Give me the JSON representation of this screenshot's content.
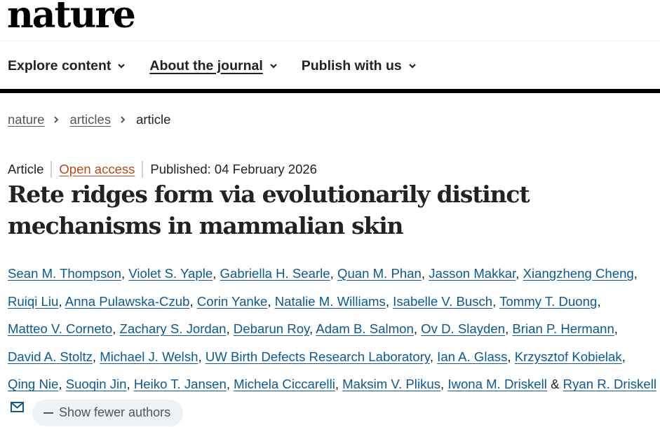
{
  "header": {
    "logo": "nature",
    "nav": [
      {
        "label": "Explore content",
        "underlined": false,
        "icon": "chevron-down-icon"
      },
      {
        "label": "About the journal",
        "underlined": true,
        "icon": "chevron-down-icon"
      },
      {
        "label": "Publish with us",
        "underlined": false,
        "icon": "chevron-down-icon"
      }
    ]
  },
  "breadcrumb": {
    "items": [
      "nature",
      "articles",
      "article"
    ],
    "separator_icon": "chevron-right-icon"
  },
  "article": {
    "type": "Article",
    "access": "Open access",
    "published": "Published: 04 February 2026",
    "title_line1": "Rete ridges form via evolutionarily distinct",
    "title_line2": "mechanisms in mammalian skin",
    "authors": [
      "Sean M. Thompson",
      "Violet S. Yaple",
      "Gabriella H. Searle",
      "Quan M. Phan",
      "Jasson Makkar",
      "Xiangzheng Cheng",
      "Ruiqi Liu",
      "Anna Pulawska-Czub",
      "Corin Yanke",
      "Natalie M. Williams",
      "Isabelle V. Busch",
      "Tommy T. Duong",
      "Matteo V. Corneto",
      "Zachary S. Jordan",
      "Debarun Roy",
      "Adam B. Salmon",
      "Ov D. Slayden",
      "Brian P. Hermann",
      "David A. Stoltz",
      "Michael J. Welsh",
      "UW Birth Defects Research Laboratory",
      "Ian A. Glass",
      "Krzysztof Kobielak",
      "Qing Nie",
      "Suoqin Jin",
      "Heiko T. Jansen",
      "Michela Ciccarelli",
      "Maksim V. Plikus",
      "Iwona M. Driskell",
      "Ryan R. Driskell"
    ],
    "author_separator": ", ",
    "final_conjunction": "&",
    "corresponding_icon": "envelope-icon",
    "show_fewer_label": "Show fewer authors"
  },
  "colors": {
    "link_blue": "#0a5a95",
    "open_access": "#b54a16",
    "pill_bg": "#eef2f6",
    "text": "#222222"
  }
}
